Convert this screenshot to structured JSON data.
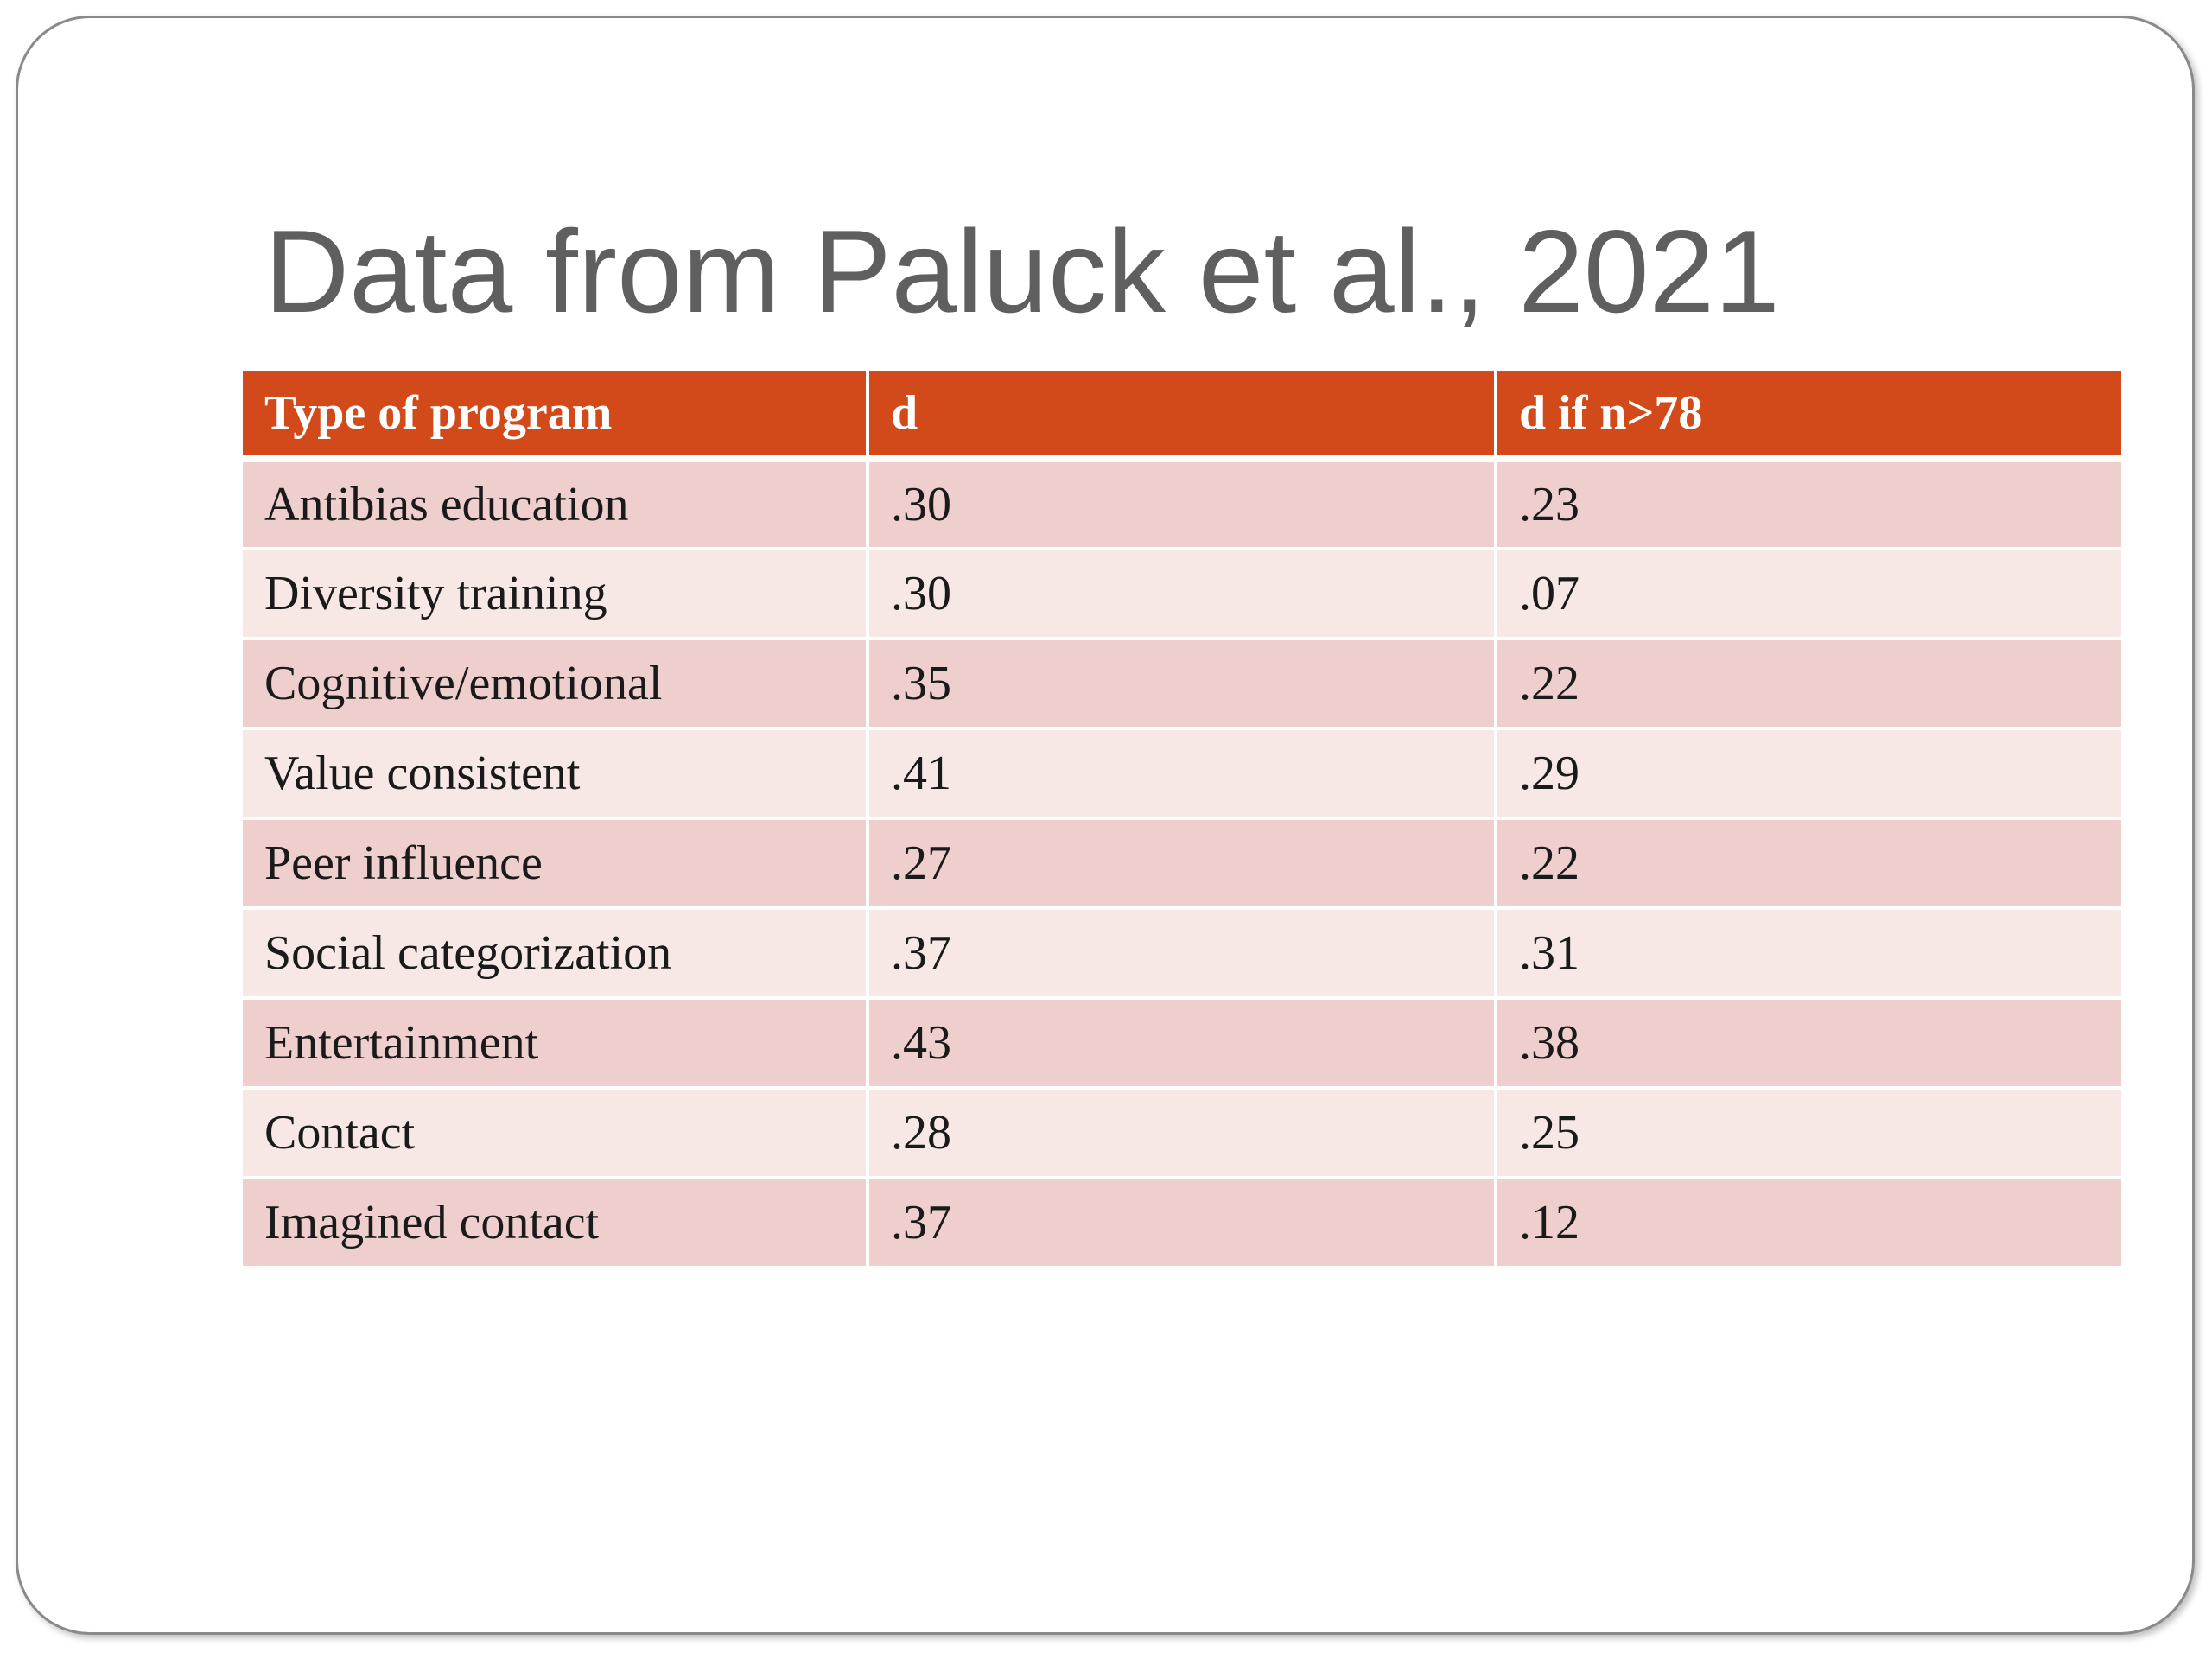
{
  "slide": {
    "title": "Data from Paluck et al., 2021"
  },
  "table": {
    "headers": [
      "Type of program",
      "d",
      "d if n>78"
    ],
    "rows": [
      [
        "Antibias education",
        ".30",
        ".23"
      ],
      [
        "Diversity training",
        ".30",
        ".07"
      ],
      [
        "Cognitive/emotional",
        ".35",
        ".22"
      ],
      [
        "Value consistent",
        ".41",
        ".29"
      ],
      [
        "Peer influence",
        ".27",
        ".22"
      ],
      [
        "Social categorization",
        ".37",
        ".31"
      ],
      [
        "Entertainment",
        ".43",
        ".38"
      ],
      [
        "Contact",
        ".28",
        ".25"
      ],
      [
        "Imagined contact",
        ".37",
        ".12"
      ]
    ]
  },
  "colors": {
    "header_bg": "#d24a19",
    "row_odd_bg": "#efcfcd",
    "row_even_bg": "#f7e8e6",
    "title_text": "#5f5f5f"
  }
}
